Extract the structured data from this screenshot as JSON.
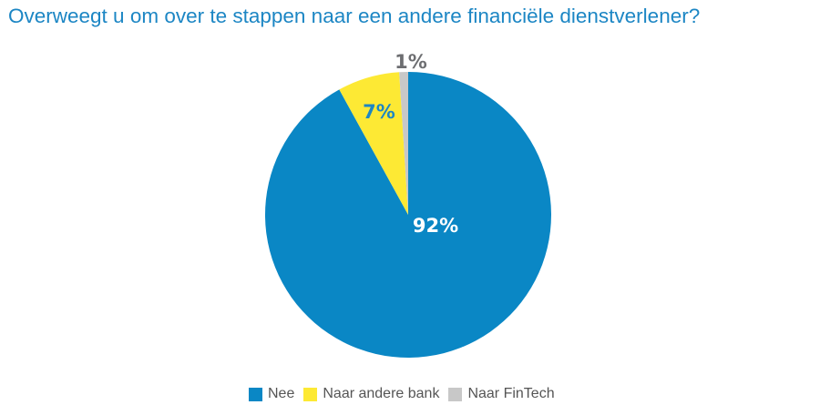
{
  "chart_data": {
    "type": "pie",
    "title": "Overweegt u om over te stappen naar een andere financiële dienstverlener?",
    "slices": [
      {
        "name": "Nee",
        "value": 92,
        "label": "92%",
        "color": "#0a87c5",
        "label_color": "#ffffff"
      },
      {
        "name": "Naar andere bank",
        "value": 7,
        "label": "7%",
        "color": "#fde934",
        "label_color": "#1c86c4"
      },
      {
        "name": "Naar FinTech",
        "value": 1,
        "label": "1%",
        "color": "#c8c8c8",
        "label_color": "#6d6e71"
      }
    ],
    "legend_position": "bottom"
  }
}
